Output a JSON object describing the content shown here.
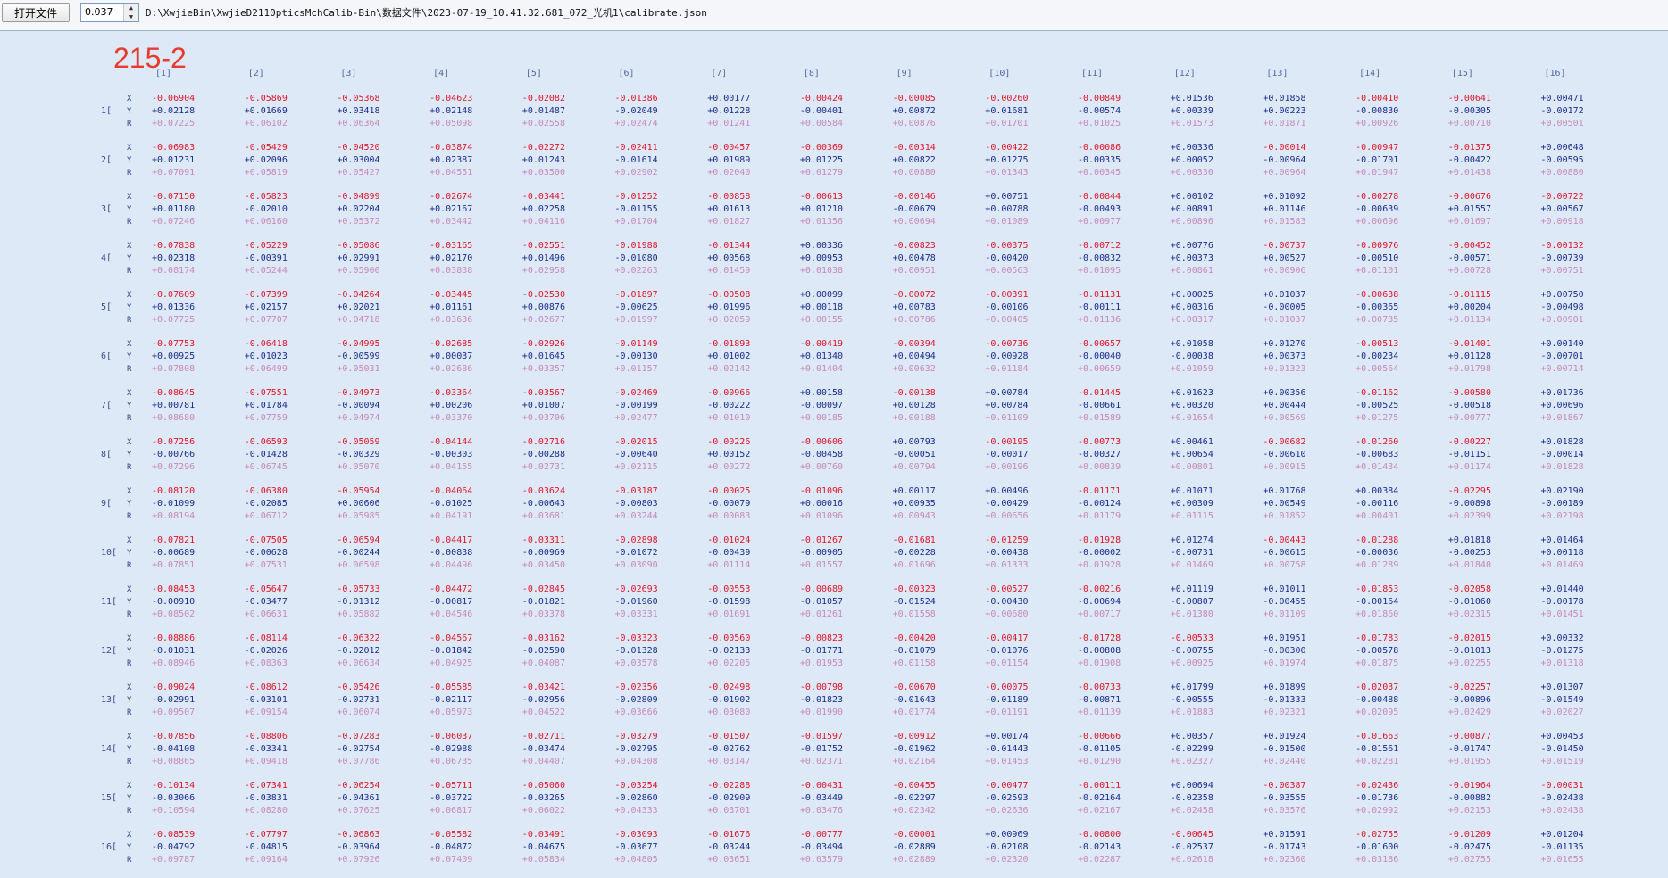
{
  "toolbar": {
    "open_label": "打开文件",
    "spin_value": "0.037",
    "file_path": "D:\\XwjieBin\\XwjieD2110pticsMchCalib-Bin\\数据文件\\2023-07-19_10.41.32.681_072_光机1\\calibrate.json"
  },
  "title": "215-2",
  "axis_labels": [
    "X",
    "Y",
    "R"
  ],
  "columns": [
    "[1]",
    "[2]",
    "[3]",
    "[4]",
    "[5]",
    "[6]",
    "[7]",
    "[8]",
    "[9]",
    "[10]",
    "[11]",
    "[12]",
    "[13]",
    "[14]",
    "[15]",
    "[16]"
  ],
  "rows": [
    {
      "label": "1[",
      "X": [
        "-0.06904",
        "-0.05869",
        "-0.05368",
        "-0.04623",
        "-0.02082",
        "-0.01386",
        "+0.00177",
        "-0.00424",
        "-0.00085",
        "-0.00260",
        "-0.00849",
        "+0.01536",
        "+0.01858",
        "-0.00410",
        "-0.00641",
        "+0.00471"
      ],
      "Y": [
        "+0.02128",
        "+0.01669",
        "+0.03418",
        "+0.02148",
        "+0.01487",
        "-0.02049",
        "+0.01228",
        "-0.00401",
        "+0.00872",
        "+0.01681",
        "-0.00574",
        "+0.00339",
        "+0.00223",
        "-0.00830",
        "-0.00305",
        "-0.00172"
      ],
      "R": [
        "+0.07225",
        "+0.06102",
        "+0.06364",
        "+0.05098",
        "+0.02558",
        "+0.02474",
        "+0.01241",
        "+0.00584",
        "+0.00876",
        "+0.01701",
        "+0.01025",
        "+0.01573",
        "+0.01871",
        "+0.00926",
        "+0.00710",
        "+0.00501"
      ]
    },
    {
      "label": "2[",
      "X": [
        "-0.06983",
        "-0.05429",
        "-0.04520",
        "-0.03874",
        "-0.02272",
        "-0.02411",
        "-0.00457",
        "-0.00369",
        "-0.00314",
        "-0.00422",
        "-0.00086",
        "+0.00336",
        "-0.00014",
        "-0.00947",
        "-0.01375",
        "+0.00648"
      ],
      "Y": [
        "+0.01231",
        "+0.02096",
        "+0.03004",
        "+0.02387",
        "+0.01243",
        "-0.01614",
        "+0.01989",
        "+0.01225",
        "+0.00822",
        "+0.01275",
        "-0.00335",
        "+0.00052",
        "-0.00964",
        "-0.01701",
        "-0.00422",
        "-0.00595"
      ],
      "R": [
        "+0.07091",
        "+0.05819",
        "+0.05427",
        "+0.04551",
        "+0.03500",
        "+0.02902",
        "+0.02040",
        "+0.01279",
        "+0.00880",
        "+0.01343",
        "+0.00345",
        "+0.00330",
        "+0.00964",
        "+0.01947",
        "+0.01438",
        "+0.00880"
      ]
    },
    {
      "label": "3[",
      "X": [
        "-0.07150",
        "-0.05823",
        "-0.04899",
        "-0.02674",
        "-0.03441",
        "-0.01252",
        "-0.00858",
        "-0.00613",
        "-0.00146",
        "+0.00751",
        "-0.00844",
        "+0.00102",
        "+0.01092",
        "-0.00278",
        "-0.00676",
        "-0.00722"
      ],
      "Y": [
        "+0.01180",
        "-0.02010",
        "+0.02204",
        "+0.02167",
        "+0.02258",
        "-0.01155",
        "+0.01613",
        "+0.01210",
        "-0.00679",
        "+0.00788",
        "-0.00493",
        "+0.00891",
        "+0.01146",
        "-0.00639",
        "+0.01557",
        "+0.00567"
      ],
      "R": [
        "+0.07246",
        "+0.06160",
        "+0.05372",
        "+0.03442",
        "+0.04116",
        "+0.01704",
        "+0.01827",
        "+0.01356",
        "+0.00694",
        "+0.01089",
        "+0.00977",
        "+0.00896",
        "+0.01583",
        "+0.00696",
        "+0.01697",
        "+0.00918"
      ]
    },
    {
      "label": "4[",
      "X": [
        "-0.07838",
        "-0.05229",
        "-0.05086",
        "-0.03165",
        "-0.02551",
        "-0.01988",
        "-0.01344",
        "+0.00336",
        "-0.00823",
        "-0.00375",
        "-0.00712",
        "+0.00776",
        "-0.00737",
        "-0.00976",
        "-0.00452",
        "-0.00132"
      ],
      "Y": [
        "+0.02318",
        "-0.00391",
        "+0.02991",
        "+0.02170",
        "+0.01496",
        "-0.01080",
        "+0.00568",
        "+0.00953",
        "+0.00478",
        "-0.00420",
        "-0.00832",
        "+0.00373",
        "+0.00527",
        "-0.00510",
        "-0.00571",
        "-0.00739"
      ],
      "R": [
        "+0.08174",
        "+0.05244",
        "+0.05900",
        "+0.03838",
        "+0.02958",
        "+0.02263",
        "+0.01459",
        "+0.01038",
        "+0.00951",
        "+0.00563",
        "+0.01095",
        "+0.00861",
        "+0.00906",
        "+0.01101",
        "+0.00728",
        "+0.00751"
      ]
    },
    {
      "label": "5[",
      "X": [
        "-0.07609",
        "-0.07399",
        "-0.04264",
        "-0.03445",
        "-0.02530",
        "-0.01897",
        "-0.00508",
        "+0.00099",
        "-0.00072",
        "-0.00391",
        "-0.01131",
        "+0.00025",
        "+0.01037",
        "-0.00638",
        "-0.01115",
        "+0.00750"
      ],
      "Y": [
        "+0.01336",
        "+0.02157",
        "+0.02021",
        "+0.01161",
        "+0.00876",
        "-0.00625",
        "+0.01996",
        "+0.00118",
        "+0.00783",
        "-0.00106",
        "-0.00111",
        "+0.00316",
        "-0.00005",
        "-0.00365",
        "+0.00204",
        "-0.00498"
      ],
      "R": [
        "+0.07725",
        "+0.07707",
        "+0.04718",
        "+0.03636",
        "+0.02677",
        "+0.01997",
        "+0.02059",
        "+0.00155",
        "+0.00786",
        "+0.00405",
        "+0.01136",
        "+0.00317",
        "+0.01037",
        "+0.00735",
        "+0.01134",
        "+0.00901"
      ]
    },
    {
      "label": "6[",
      "X": [
        "-0.07753",
        "-0.06418",
        "-0.04995",
        "-0.02685",
        "-0.02926",
        "-0.01149",
        "-0.01893",
        "-0.00419",
        "-0.00394",
        "-0.00736",
        "-0.00657",
        "+0.01058",
        "+0.01270",
        "-0.00513",
        "-0.01401",
        "+0.00140"
      ],
      "Y": [
        "+0.00925",
        "+0.01023",
        "-0.00599",
        "+0.00037",
        "+0.01645",
        "-0.00130",
        "+0.01002",
        "+0.01340",
        "+0.00494",
        "-0.00928",
        "-0.00040",
        "-0.00038",
        "+0.00373",
        "-0.00234",
        "+0.01128",
        "-0.00701"
      ],
      "R": [
        "+0.07808",
        "+0.06499",
        "+0.05031",
        "+0.02686",
        "+0.03357",
        "+0.01157",
        "+0.02142",
        "+0.01404",
        "+0.00632",
        "+0.01184",
        "+0.00659",
        "+0.01059",
        "+0.01323",
        "+0.00564",
        "+0.01798",
        "+0.00714"
      ]
    },
    {
      "label": "7[",
      "X": [
        "-0.08645",
        "-0.07551",
        "-0.04973",
        "-0.03364",
        "-0.03567",
        "-0.02469",
        "-0.00966",
        "+0.00158",
        "-0.00138",
        "+0.00784",
        "-0.01445",
        "+0.01623",
        "+0.00356",
        "-0.01162",
        "-0.00580",
        "+0.01736"
      ],
      "Y": [
        "+0.00781",
        "+0.01784",
        "-0.00094",
        "+0.00206",
        "+0.01007",
        "-0.00199",
        "-0.00222",
        "-0.00097",
        "+0.00128",
        "+0.00784",
        "-0.00661",
        "+0.00320",
        "+0.00444",
        "-0.00525",
        "-0.00518",
        "+0.00696"
      ],
      "R": [
        "+0.08680",
        "+0.07759",
        "+0.04974",
        "+0.03370",
        "+0.03706",
        "+0.02477",
        "+0.01010",
        "+0.00185",
        "+0.00188",
        "+0.01109",
        "+0.01589",
        "+0.01654",
        "+0.00569",
        "+0.01275",
        "+0.00777",
        "+0.01867"
      ]
    },
    {
      "label": "8[",
      "X": [
        "-0.07256",
        "-0.06593",
        "-0.05059",
        "-0.04144",
        "-0.02716",
        "-0.02015",
        "-0.00226",
        "-0.00606",
        "+0.00793",
        "-0.00195",
        "-0.00773",
        "+0.00461",
        "-0.00682",
        "-0.01260",
        "-0.00227",
        "+0.01828"
      ],
      "Y": [
        "-0.00766",
        "-0.01428",
        "-0.00329",
        "-0.00303",
        "-0.00288",
        "-0.00640",
        "+0.00152",
        "-0.00458",
        "-0.00051",
        "-0.00017",
        "-0.00327",
        "+0.00654",
        "-0.00610",
        "-0.00683",
        "-0.01151",
        "-0.00014"
      ],
      "R": [
        "+0.07296",
        "+0.06745",
        "+0.05070",
        "+0.04155",
        "+0.02731",
        "+0.02115",
        "+0.00272",
        "+0.00760",
        "+0.00794",
        "+0.00196",
        "+0.00839",
        "+0.00801",
        "+0.00915",
        "+0.01434",
        "+0.01174",
        "+0.01828"
      ]
    },
    {
      "label": "9[",
      "X": [
        "-0.08120",
        "-0.06380",
        "-0.05954",
        "-0.04064",
        "-0.03624",
        "-0.03187",
        "-0.00025",
        "-0.01096",
        "+0.00117",
        "+0.00496",
        "-0.01171",
        "+0.01071",
        "+0.01768",
        "+0.00384",
        "-0.02295",
        "+0.02190"
      ],
      "Y": [
        "-0.01099",
        "-0.02085",
        "+0.00606",
        "-0.01025",
        "-0.00643",
        "-0.00803",
        "-0.00079",
        "+0.00016",
        "+0.00935",
        "-0.00429",
        "-0.00124",
        "+0.00309",
        "+0.00549",
        "-0.00116",
        "-0.00898",
        "-0.00189"
      ],
      "R": [
        "+0.08194",
        "+0.06712",
        "+0.05985",
        "+0.04191",
        "+0.03681",
        "+0.03244",
        "+0.00083",
        "+0.01096",
        "+0.00943",
        "+0.00656",
        "+0.01179",
        "+0.01115",
        "+0.01852",
        "+0.00401",
        "+0.02399",
        "+0.02198"
      ]
    },
    {
      "label": "10[",
      "X": [
        "-0.07821",
        "-0.07505",
        "-0.06594",
        "-0.04417",
        "-0.03311",
        "-0.02898",
        "-0.01024",
        "-0.01267",
        "-0.01681",
        "-0.01259",
        "-0.01928",
        "+0.01274",
        "-0.00443",
        "-0.01288",
        "+0.01818",
        "+0.01464"
      ],
      "Y": [
        "-0.00689",
        "-0.00628",
        "-0.00244",
        "-0.00838",
        "-0.00969",
        "-0.01072",
        "-0.00439",
        "-0.00905",
        "-0.00228",
        "-0.00438",
        "-0.00002",
        "-0.00731",
        "-0.00615",
        "-0.00036",
        "-0.00253",
        "+0.00118"
      ],
      "R": [
        "+0.07851",
        "+0.07531",
        "+0.06598",
        "+0.04496",
        "+0.03450",
        "+0.03090",
        "+0.01114",
        "+0.01557",
        "+0.01696",
        "+0.01333",
        "+0.01928",
        "+0.01469",
        "+0.00758",
        "+0.01289",
        "+0.01840",
        "+0.01469"
      ]
    },
    {
      "label": "11[",
      "X": [
        "-0.08453",
        "-0.05647",
        "-0.05733",
        "-0.04472",
        "-0.02845",
        "-0.02693",
        "-0.00553",
        "-0.00689",
        "-0.00323",
        "-0.00527",
        "-0.00216",
        "+0.01119",
        "+0.01011",
        "-0.01853",
        "-0.02058",
        "+0.01440"
      ],
      "Y": [
        "-0.00910",
        "-0.03477",
        "-0.01312",
        "-0.00817",
        "-0.01821",
        "-0.01960",
        "-0.01598",
        "-0.01057",
        "-0.01524",
        "-0.00430",
        "-0.00694",
        "-0.00807",
        "-0.00455",
        "-0.00164",
        "-0.01060",
        "-0.00178"
      ],
      "R": [
        "+0.08502",
        "+0.06631",
        "+0.05882",
        "+0.04546",
        "+0.03378",
        "+0.03331",
        "+0.01691",
        "+0.01261",
        "+0.01558",
        "+0.00680",
        "+0.00717",
        "+0.01380",
        "+0.01109",
        "+0.01860",
        "+0.02315",
        "+0.01451"
      ]
    },
    {
      "label": "12[",
      "X": [
        "-0.08886",
        "-0.08114",
        "-0.06322",
        "-0.04567",
        "-0.03162",
        "-0.03323",
        "-0.00560",
        "-0.00823",
        "-0.00420",
        "-0.00417",
        "-0.01728",
        "-0.00533",
        "+0.01951",
        "-0.01783",
        "-0.02015",
        "+0.00332"
      ],
      "Y": [
        "-0.01031",
        "-0.02026",
        "-0.02012",
        "-0.01842",
        "-0.02590",
        "-0.01328",
        "-0.02133",
        "-0.01771",
        "-0.01079",
        "-0.01076",
        "-0.00808",
        "-0.00755",
        "-0.00300",
        "-0.00578",
        "-0.01013",
        "-0.01275"
      ],
      "R": [
        "+0.08946",
        "+0.08363",
        "+0.06634",
        "+0.04925",
        "+0.04087",
        "+0.03578",
        "+0.02205",
        "+0.01953",
        "+0.01158",
        "+0.01154",
        "+0.01908",
        "+0.00925",
        "+0.01974",
        "+0.01875",
        "+0.02255",
        "+0.01318"
      ]
    },
    {
      "label": "13[",
      "X": [
        "-0.09024",
        "-0.08612",
        "-0.05426",
        "-0.05585",
        "-0.03421",
        "-0.02356",
        "-0.02498",
        "-0.00798",
        "-0.00670",
        "-0.00075",
        "-0.00733",
        "+0.01799",
        "+0.01899",
        "-0.02037",
        "-0.02257",
        "+0.01307"
      ],
      "Y": [
        "-0.02991",
        "-0.03101",
        "-0.02731",
        "-0.02117",
        "-0.02956",
        "-0.02809",
        "-0.01902",
        "-0.01823",
        "-0.01643",
        "-0.01189",
        "-0.00871",
        "-0.00555",
        "-0.01333",
        "-0.00488",
        "-0.00896",
        "-0.01549"
      ],
      "R": [
        "+0.09507",
        "+0.09154",
        "+0.06074",
        "+0.05973",
        "+0.04522",
        "+0.03666",
        "+0.03080",
        "+0.01990",
        "+0.01774",
        "+0.01191",
        "+0.01139",
        "+0.01883",
        "+0.02321",
        "+0.02095",
        "+0.02429",
        "+0.02027"
      ]
    },
    {
      "label": "14[",
      "X": [
        "-0.07856",
        "-0.08806",
        "-0.07283",
        "-0.06037",
        "-0.02711",
        "-0.03279",
        "-0.01507",
        "-0.01597",
        "-0.00912",
        "+0.00174",
        "-0.00666",
        "+0.00357",
        "+0.01924",
        "-0.01663",
        "-0.00877",
        "+0.00453"
      ],
      "Y": [
        "-0.04108",
        "-0.03341",
        "-0.02754",
        "-0.02988",
        "-0.03474",
        "-0.02795",
        "-0.02762",
        "-0.01752",
        "-0.01962",
        "-0.01443",
        "-0.01105",
        "-0.02299",
        "-0.01500",
        "-0.01561",
        "-0.01747",
        "-0.01450"
      ],
      "R": [
        "+0.08865",
        "+0.09418",
        "+0.07786",
        "+0.06735",
        "+0.04407",
        "+0.04308",
        "+0.03147",
        "+0.02371",
        "+0.02164",
        "+0.01453",
        "+0.01290",
        "+0.02327",
        "+0.02440",
        "+0.02281",
        "+0.01955",
        "+0.01519"
      ]
    },
    {
      "label": "15[",
      "X": [
        "-0.10134",
        "-0.07341",
        "-0.06254",
        "-0.05711",
        "-0.05060",
        "-0.03254",
        "-0.02288",
        "-0.00431",
        "-0.00455",
        "-0.00477",
        "-0.00111",
        "+0.00694",
        "-0.00387",
        "-0.02436",
        "-0.01964",
        "-0.00031"
      ],
      "Y": [
        "-0.03066",
        "-0.03831",
        "-0.04361",
        "-0.03722",
        "-0.03265",
        "-0.02860",
        "-0.02909",
        "-0.03449",
        "-0.02297",
        "-0.02593",
        "-0.02164",
        "-0.02358",
        "-0.03555",
        "-0.01736",
        "-0.00882",
        "-0.02438"
      ],
      "R": [
        "+0.10594",
        "+0.08280",
        "+0.07625",
        "+0.06817",
        "+0.06022",
        "+0.04333",
        "+0.03701",
        "+0.03476",
        "+0.02342",
        "+0.02636",
        "+0.02167",
        "+0.02458",
        "+0.03576",
        "+0.02992",
        "+0.02153",
        "+0.02438"
      ]
    },
    {
      "label": "16[",
      "X": [
        "-0.08539",
        "-0.07797",
        "-0.06863",
        "-0.05582",
        "-0.03491",
        "-0.03093",
        "-0.01676",
        "-0.00777",
        "-0.00001",
        "+0.00969",
        "-0.00800",
        "-0.00645",
        "+0.01591",
        "-0.02755",
        "-0.01209",
        "+0.01204"
      ],
      "Y": [
        "-0.04792",
        "-0.04815",
        "-0.03964",
        "-0.04872",
        "-0.04675",
        "-0.03677",
        "-0.03244",
        "-0.03494",
        "-0.02889",
        "-0.02108",
        "-0.02143",
        "-0.02537",
        "-0.01743",
        "-0.01600",
        "-0.02475",
        "-0.01135"
      ],
      "R": [
        "+0.09787",
        "+0.09164",
        "+0.07926",
        "+0.07409",
        "+0.05834",
        "+0.04805",
        "+0.03651",
        "+0.03579",
        "+0.02889",
        "+0.02320",
        "+0.02287",
        "+0.02618",
        "+0.02360",
        "+0.03186",
        "+0.02755",
        "+0.01655"
      ]
    }
  ]
}
